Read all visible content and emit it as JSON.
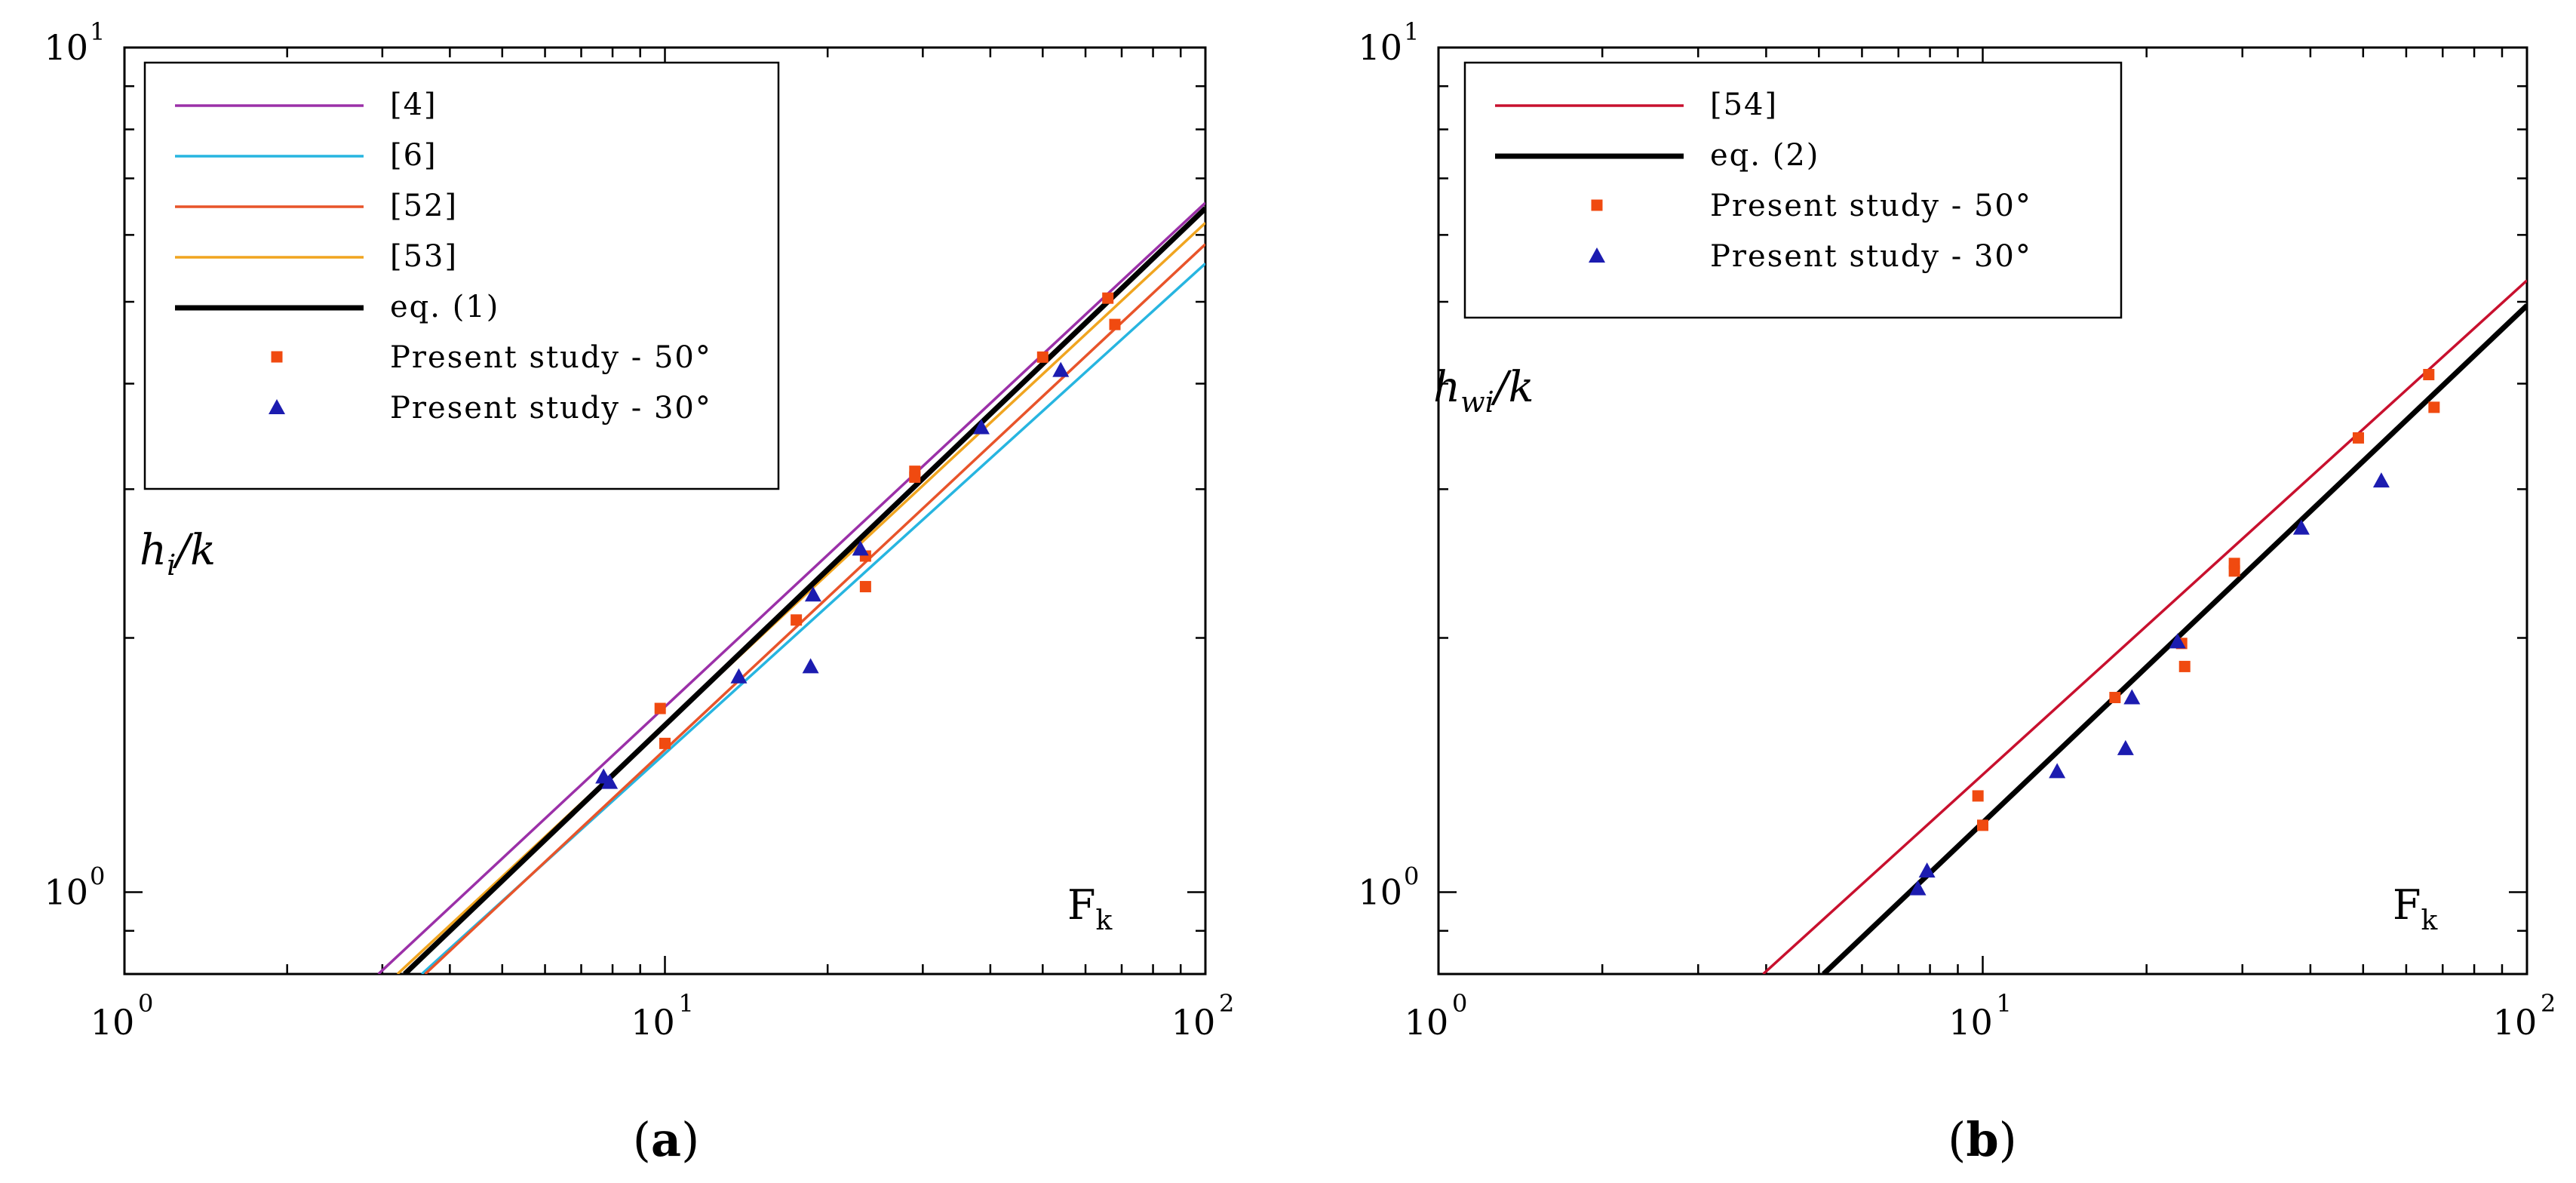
{
  "chart_data": [
    {
      "type": "line",
      "panel": {
        "open": "(",
        "letter": "a",
        "close": ")"
      },
      "xscale": "log",
      "yscale": "log",
      "xlim": [
        1,
        100
      ],
      "ylim": [
        0.8,
        10
      ],
      "x_ticks": [
        {
          "base": "10",
          "exp": "0"
        },
        {
          "base": "10",
          "exp": "1"
        },
        {
          "base": "10",
          "exp": "2"
        }
      ],
      "y_ticks": [
        {
          "base": "10",
          "exp": "0"
        },
        {
          "base": "10",
          "exp": "1"
        }
      ],
      "ylabel": {
        "main": "h",
        "sub": "i",
        "rest": "/k"
      },
      "xlabel": {
        "main": "F",
        "sub": "k"
      },
      "legend_position": "top-left",
      "lines": [
        {
          "name": "[4]",
          "color": "#9b30a8",
          "width": 3.5,
          "points": [
            [
              2.95,
              0.8
            ],
            [
              100,
              6.55
            ]
          ]
        },
        {
          "name": "[6]",
          "color": "#27b5e0",
          "width": 3.5,
          "points": [
            [
              3.55,
              0.8
            ],
            [
              100,
              5.55
            ]
          ]
        },
        {
          "name": "[52]",
          "color": "#e8542a",
          "width": 3.5,
          "points": [
            [
              3.6,
              0.8
            ],
            [
              100,
              5.85
            ]
          ]
        },
        {
          "name": "[53]",
          "color": "#f0a520",
          "width": 3.5,
          "points": [
            [
              3.2,
              0.8
            ],
            [
              100,
              6.2
            ]
          ]
        },
        {
          "name": "eq. (1)",
          "color": "#000000",
          "width": 7,
          "points": [
            [
              3.3,
              0.8
            ],
            [
              100,
              6.45
            ]
          ]
        }
      ],
      "scatter": [
        {
          "name": "Present study - 50°",
          "color": "#f04a10",
          "marker": "square",
          "points": [
            [
              9.8,
              1.65
            ],
            [
              10.0,
              1.5
            ],
            [
              17.5,
              2.1
            ],
            [
              23.5,
              2.5
            ],
            [
              23.5,
              2.3
            ],
            [
              29,
              3.1
            ],
            [
              29,
              3.15
            ],
            [
              50,
              4.3
            ],
            [
              66,
              5.05
            ],
            [
              68,
              4.7
            ]
          ]
        },
        {
          "name": "Present study - 30°",
          "color": "#1c1cb0",
          "marker": "triangle",
          "points": [
            [
              7.7,
              1.37
            ],
            [
              7.9,
              1.35
            ],
            [
              13.7,
              1.8
            ],
            [
              18.6,
              1.85
            ],
            [
              18.8,
              2.25
            ],
            [
              23,
              2.55
            ],
            [
              38.5,
              3.55
            ],
            [
              54,
              4.15
            ]
          ]
        }
      ]
    },
    {
      "type": "line",
      "panel": {
        "open": "(",
        "letter": "b",
        "close": ")"
      },
      "xscale": "log",
      "yscale": "log",
      "xlim": [
        1,
        100
      ],
      "ylim": [
        0.8,
        10
      ],
      "x_ticks": [
        {
          "base": "10",
          "exp": "0"
        },
        {
          "base": "10",
          "exp": "1"
        },
        {
          "base": "10",
          "exp": "2"
        }
      ],
      "y_ticks": [
        {
          "base": "10",
          "exp": "0"
        },
        {
          "base": "10",
          "exp": "1"
        }
      ],
      "ylabel": {
        "main": "h",
        "sub": "wi",
        "rest": "/k"
      },
      "xlabel": {
        "main": "F",
        "sub": "k"
      },
      "legend_position": "top-left",
      "lines": [
        {
          "name": "[54]",
          "color": "#c8102e",
          "width": 3.5,
          "points": [
            [
              3.95,
              0.8
            ],
            [
              100,
              5.3
            ]
          ]
        },
        {
          "name": "eq. (2)",
          "color": "#000000",
          "width": 7,
          "points": [
            [
              5.1,
              0.8
            ],
            [
              100,
              4.95
            ]
          ]
        }
      ],
      "scatter": [
        {
          "name": "Present study - 50°",
          "color": "#f04a10",
          "marker": "square",
          "points": [
            [
              9.8,
              1.3
            ],
            [
              10.0,
              1.2
            ],
            [
              17.5,
              1.7
            ],
            [
              23.2,
              1.97
            ],
            [
              23.5,
              1.85
            ],
            [
              29,
              2.4
            ],
            [
              29,
              2.45
            ],
            [
              49,
              3.45
            ],
            [
              66,
              4.1
            ],
            [
              67.5,
              3.75
            ]
          ]
        },
        {
          "name": "Present study - 30°",
          "color": "#1c1cb0",
          "marker": "triangle",
          "points": [
            [
              7.6,
              1.01
            ],
            [
              7.9,
              1.06
            ],
            [
              13.7,
              1.39
            ],
            [
              18.3,
              1.48
            ],
            [
              18.8,
              1.7
            ],
            [
              22.8,
              1.98
            ],
            [
              38.5,
              2.7
            ],
            [
              54,
              3.07
            ]
          ]
        }
      ]
    }
  ]
}
